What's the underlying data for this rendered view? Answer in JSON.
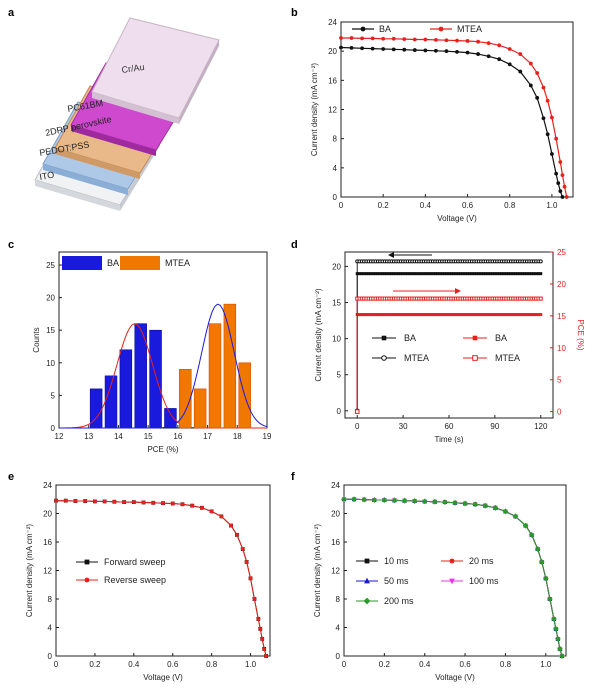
{
  "colors": {
    "black": "#111111",
    "red": "#e8201c",
    "blue": "#1a1adc",
    "orange": "#f07800",
    "magenta": "#ee33ee",
    "green": "#2a9a2a"
  },
  "panel_a": {
    "label": "a",
    "layers": [
      "Cr/Au",
      "PC61BM",
      "2DRP perovskite",
      "PEDOT:PSS",
      "ITO"
    ]
  },
  "chart_data": [
    {
      "panel": "b",
      "type": "line",
      "xlabel": "Voltage (V)",
      "ylabel": "Current density (mA cm⁻²)",
      "xlim": [
        0,
        1.1
      ],
      "ylim": [
        0,
        24
      ],
      "xticks": [
        "0",
        "0.2",
        "0.4",
        "0.6",
        "0.8",
        "1.0"
      ],
      "yticks": [
        "0",
        "4",
        "8",
        "12",
        "16",
        "20",
        "24"
      ],
      "legend": "top-left",
      "series": [
        {
          "name": "BA",
          "color": "black",
          "x": [
            0,
            0.05,
            0.1,
            0.15,
            0.2,
            0.25,
            0.3,
            0.35,
            0.4,
            0.45,
            0.5,
            0.55,
            0.6,
            0.65,
            0.7,
            0.75,
            0.8,
            0.85,
            0.9,
            0.93,
            0.96,
            0.98,
            1.0,
            1.02,
            1.03,
            1.04,
            1.05
          ],
          "y": [
            20.5,
            20.45,
            20.4,
            20.35,
            20.3,
            20.25,
            20.2,
            20.15,
            20.1,
            20.05,
            20.0,
            19.9,
            19.8,
            19.6,
            19.3,
            18.9,
            18.2,
            17.2,
            15.3,
            13.6,
            10.8,
            8.6,
            5.9,
            3.2,
            1.9,
            0.8,
            0
          ]
        },
        {
          "name": "MTEA",
          "color": "red",
          "x": [
            0,
            0.05,
            0.1,
            0.15,
            0.2,
            0.25,
            0.3,
            0.35,
            0.4,
            0.45,
            0.5,
            0.55,
            0.6,
            0.65,
            0.7,
            0.75,
            0.8,
            0.85,
            0.9,
            0.93,
            0.96,
            0.98,
            1.0,
            1.02,
            1.04,
            1.05,
            1.06,
            1.07
          ],
          "y": [
            21.8,
            21.8,
            21.75,
            21.75,
            21.7,
            21.7,
            21.65,
            21.6,
            21.6,
            21.55,
            21.5,
            21.45,
            21.4,
            21.3,
            21.1,
            20.8,
            20.3,
            19.6,
            18.3,
            17.0,
            15.0,
            13.2,
            10.9,
            8.0,
            4.8,
            3.0,
            1.4,
            0
          ]
        }
      ]
    },
    {
      "panel": "c",
      "type": "bar",
      "xlabel": "PCE (%)",
      "ylabel": "Counts",
      "xlim": [
        12,
        19
      ],
      "ylim": [
        0,
        27
      ],
      "xticks": [
        "12",
        "13",
        "14",
        "15",
        "16",
        "17",
        "18",
        "19"
      ],
      "yticks": [
        "0",
        "5",
        "10",
        "15",
        "20",
        "25"
      ],
      "legend": "top",
      "series": [
        {
          "name": "BA",
          "color": "blue",
          "x": [
            13.25,
            13.75,
            14.25,
            14.75,
            15.25,
            15.75
          ],
          "y": [
            6,
            8,
            12,
            16,
            15,
            3
          ],
          "fit_mean": 14.55,
          "fit_sigma": 0.6,
          "fit_peak": 16
        },
        {
          "name": "MTEA",
          "color": "orange",
          "x": [
            16.25,
            16.75,
            17.25,
            17.75,
            18.25
          ],
          "y": [
            9,
            6,
            16,
            19,
            10
          ],
          "fit_mean": 17.35,
          "fit_sigma": 0.55,
          "fit_peak": 19
        }
      ]
    },
    {
      "panel": "d",
      "type": "scatter",
      "xlabel": "Time (s)",
      "ylabel": "Current density (mA cm⁻²)",
      "ylabel_right": "PCE (%)",
      "xlim": [
        -8,
        128
      ],
      "ylim": [
        -1,
        22
      ],
      "ylim_right": [
        -1,
        25
      ],
      "xticks": [
        "0",
        "30",
        "60",
        "90",
        "120"
      ],
      "yticks": [
        "0",
        "5",
        "10",
        "15",
        "20"
      ],
      "yticks_right": [
        "0",
        "5",
        "10",
        "15",
        "20",
        "25"
      ],
      "legend": "middle",
      "series": [
        {
          "name": "BA",
          "axis": "left",
          "marker": "filled-square",
          "color": "black",
          "steady": 19.0
        },
        {
          "name": "BA",
          "axis": "right",
          "marker": "filled-square",
          "color": "red",
          "steady": 15.2
        },
        {
          "name": "MTEA",
          "axis": "left",
          "marker": "open-circle",
          "color": "black",
          "steady": 20.7
        },
        {
          "name": "MTEA",
          "axis": "right",
          "marker": "open-square",
          "color": "red",
          "steady": 17.7
        }
      ]
    },
    {
      "panel": "e",
      "type": "line",
      "xlabel": "Voltage (V)",
      "ylabel": "Current density (mA cm⁻²)",
      "xlim": [
        0,
        1.1
      ],
      "ylim": [
        0,
        24
      ],
      "xticks": [
        "0",
        "0.2",
        "0.4",
        "0.6",
        "0.8",
        "1.0"
      ],
      "yticks": [
        "0",
        "4",
        "8",
        "12",
        "16",
        "20",
        "24"
      ],
      "legend": "middle-left",
      "series": [
        {
          "name": "Forward sweep",
          "color": "black"
        },
        {
          "name": "Reverse sweep",
          "color": "red"
        }
      ],
      "x": [
        0,
        0.05,
        0.1,
        0.15,
        0.2,
        0.25,
        0.3,
        0.35,
        0.4,
        0.45,
        0.5,
        0.55,
        0.6,
        0.65,
        0.7,
        0.75,
        0.8,
        0.85,
        0.9,
        0.93,
        0.96,
        0.98,
        1.0,
        1.02,
        1.04,
        1.05,
        1.06,
        1.07,
        1.08
      ],
      "y": [
        21.8,
        21.8,
        21.75,
        21.75,
        21.7,
        21.7,
        21.65,
        21.6,
        21.6,
        21.55,
        21.5,
        21.45,
        21.4,
        21.3,
        21.1,
        20.8,
        20.3,
        19.6,
        18.3,
        17.0,
        15.0,
        13.2,
        10.9,
        8.0,
        5.2,
        3.8,
        2.4,
        1.0,
        0
      ]
    },
    {
      "panel": "f",
      "type": "line",
      "xlabel": "Voltage (V)",
      "ylabel": "Current density (mA cm⁻²)",
      "xlim": [
        0,
        1.1
      ],
      "ylim": [
        0,
        24
      ],
      "xticks": [
        "0",
        "0.2",
        "0.4",
        "0.6",
        "0.8",
        "1.0"
      ],
      "yticks": [
        "0",
        "4",
        "8",
        "12",
        "16",
        "20",
        "24"
      ],
      "legend": "middle-left",
      "series": [
        {
          "name": "10 ms",
          "color": "black"
        },
        {
          "name": "20 ms",
          "color": "red"
        },
        {
          "name": "50 ms",
          "color": "blue"
        },
        {
          "name": "100 ms",
          "color": "magenta"
        },
        {
          "name": "200 ms",
          "color": "green"
        }
      ],
      "x": [
        0,
        0.05,
        0.1,
        0.15,
        0.2,
        0.25,
        0.3,
        0.35,
        0.4,
        0.45,
        0.5,
        0.55,
        0.6,
        0.65,
        0.7,
        0.75,
        0.8,
        0.85,
        0.9,
        0.93,
        0.96,
        0.98,
        1.0,
        1.02,
        1.04,
        1.05,
        1.06,
        1.07,
        1.08
      ],
      "y": [
        22.0,
        22.0,
        21.95,
        21.9,
        21.9,
        21.85,
        21.8,
        21.75,
        21.7,
        21.65,
        21.6,
        21.5,
        21.4,
        21.3,
        21.1,
        20.8,
        20.3,
        19.6,
        18.3,
        17.0,
        15.0,
        13.2,
        10.9,
        8.0,
        5.2,
        3.8,
        2.4,
        1.0,
        0
      ]
    }
  ]
}
